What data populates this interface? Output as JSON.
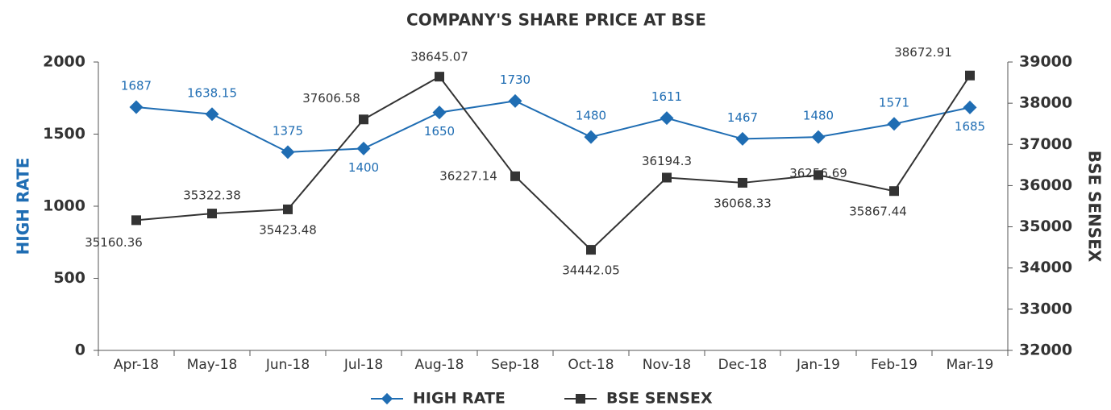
{
  "chart_data": {
    "type": "line",
    "title": "COMPANY'S SHARE PRICE AT BSE",
    "ylabel": "HIGH RATE",
    "y2label": "BSE SENSEX",
    "categories": [
      "Apr-18",
      "May-18",
      "Jun-18",
      "Jul-18",
      "Aug-18",
      "Sep-18",
      "Oct-18",
      "Nov-18",
      "Dec-18",
      "Jan-19",
      "Feb-19",
      "Mar-19"
    ],
    "series": [
      {
        "name": "HIGH RATE",
        "color": "#1f6db3",
        "values": [
          1687,
          1638.15,
          1375,
          1400,
          1650,
          1730,
          1480,
          1611,
          1467,
          1480,
          1571,
          1685
        ]
      },
      {
        "name": "BSE SENSEX",
        "color": "#333333",
        "axis": "y2",
        "values": [
          35160.36,
          35322.38,
          35423.48,
          37606.58,
          38645.07,
          36227.14,
          34442.05,
          36194.3,
          36068.33,
          36256.69,
          35867.44,
          38672.91
        ]
      }
    ],
    "ylim": [
      0,
      2000
    ],
    "yticks": [
      0,
      500,
      1000,
      1500,
      2000
    ],
    "y2lim": [
      32000,
      39000
    ],
    "y2ticks": [
      32000,
      33000,
      34000,
      35000,
      36000,
      37000,
      38000,
      39000
    ],
    "legend": "bottom"
  }
}
